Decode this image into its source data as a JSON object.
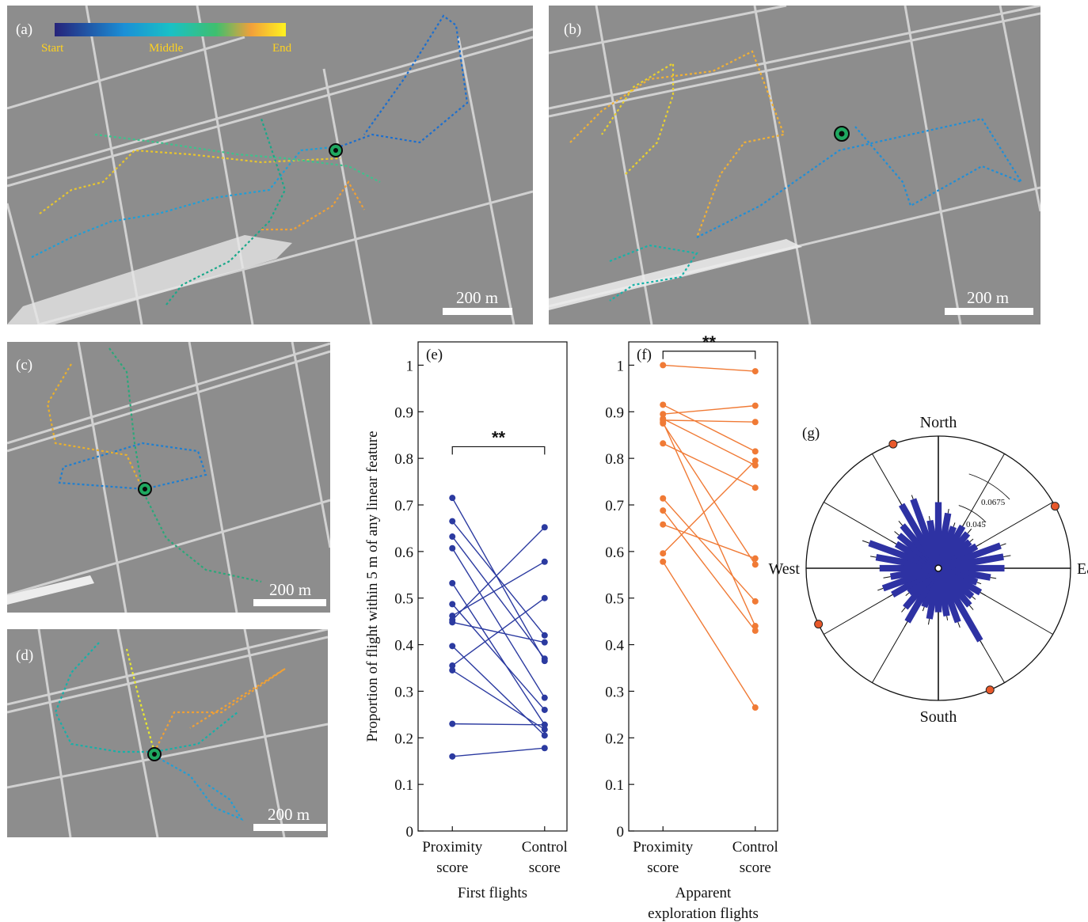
{
  "maps": [
    {
      "id": "a",
      "letter": "(a)",
      "scale_label": "200 m"
    },
    {
      "id": "b",
      "letter": "(b)",
      "scale_label": "200 m"
    },
    {
      "id": "c",
      "letter": "(c)",
      "scale_label": "200 m"
    },
    {
      "id": "d",
      "letter": "(d)",
      "scale_label": "200 m"
    }
  ],
  "colorbar": {
    "start": "Start",
    "middle": "Middle",
    "end": "End"
  },
  "colors": {
    "first_flights": "#2b3aa0",
    "exploration": "#f07a35",
    "rose_bars": "#2e32a3",
    "rose_marker": "#e8582a"
  },
  "chart_data": [
    {
      "type": "line",
      "panel": "(e)",
      "title": "",
      "xlabel": "First flights",
      "ylabel": "Proportion of flight within 5 m of any linear feature",
      "categories": [
        [
          "Proximity",
          "score"
        ],
        [
          "Control",
          "score"
        ]
      ],
      "ylim": [
        0,
        1.05
      ],
      "yticks": [
        0,
        0.1,
        0.2,
        0.3,
        0.4,
        0.5,
        0.6,
        0.7,
        0.8,
        0.9,
        1
      ],
      "significance": "**",
      "pairs": [
        [
          0.715,
          0.365
        ],
        [
          0.665,
          0.42
        ],
        [
          0.632,
          0.37
        ],
        [
          0.607,
          0.286
        ],
        [
          0.532,
          0.228
        ],
        [
          0.487,
          0.26
        ],
        [
          0.462,
          0.578
        ],
        [
          0.453,
          0.652
        ],
        [
          0.448,
          0.405
        ],
        [
          0.397,
          0.205
        ],
        [
          0.355,
          0.5
        ],
        [
          0.345,
          0.218
        ],
        [
          0.23,
          0.228
        ],
        [
          0.16,
          0.178
        ]
      ]
    },
    {
      "type": "line",
      "panel": "(f)",
      "title": "",
      "xlabel": [
        "Apparent",
        "exploration flights"
      ],
      "ylabel": "",
      "categories": [
        [
          "Proximity",
          "score"
        ],
        [
          "Control",
          "score"
        ]
      ],
      "ylim": [
        0,
        1.05
      ],
      "yticks": [
        0,
        0.1,
        0.2,
        0.3,
        0.4,
        0.5,
        0.6,
        0.7,
        0.8,
        0.9,
        1
      ],
      "significance": "**",
      "pairs": [
        [
          1.0,
          0.987
        ],
        [
          0.915,
          0.815
        ],
        [
          0.895,
          0.913
        ],
        [
          0.885,
          0.785
        ],
        [
          0.882,
          0.878
        ],
        [
          0.878,
          0.44
        ],
        [
          0.875,
          0.572
        ],
        [
          0.832,
          0.737
        ],
        [
          0.714,
          0.493
        ],
        [
          0.688,
          0.43
        ],
        [
          0.658,
          0.585
        ],
        [
          0.596,
          0.795
        ],
        [
          0.578,
          0.265
        ]
      ]
    },
    {
      "type": "polar-bar",
      "panel": "(g)",
      "title": "",
      "direction_labels": {
        "north": "North",
        "south": "South",
        "east": "East",
        "west": "West"
      },
      "ring_labels": [
        "0.045",
        "0.0675"
      ],
      "ring_values": [
        0.045,
        0.0675
      ],
      "rmax": 0.09,
      "bars": [
        {
          "angle_deg": 0,
          "value": 0.045,
          "err": 0.003
        },
        {
          "angle_deg": 10,
          "value": 0.038,
          "err": 0.003
        },
        {
          "angle_deg": 20,
          "value": 0.03,
          "err": 0.003
        },
        {
          "angle_deg": 30,
          "value": 0.033,
          "err": 0.004
        },
        {
          "angle_deg": 40,
          "value": 0.031,
          "err": 0.004
        },
        {
          "angle_deg": 50,
          "value": 0.028,
          "err": 0.003
        },
        {
          "angle_deg": 60,
          "value": 0.03,
          "err": 0.004
        },
        {
          "angle_deg": 70,
          "value": 0.045,
          "err": 0.004
        },
        {
          "angle_deg": 80,
          "value": 0.045,
          "err": 0.005
        },
        {
          "angle_deg": 90,
          "value": 0.045,
          "err": 0.004
        },
        {
          "angle_deg": 100,
          "value": 0.036,
          "err": 0.004
        },
        {
          "angle_deg": 110,
          "value": 0.028,
          "err": 0.003
        },
        {
          "angle_deg": 120,
          "value": 0.033,
          "err": 0.004
        },
        {
          "angle_deg": 130,
          "value": 0.03,
          "err": 0.003
        },
        {
          "angle_deg": 140,
          "value": 0.033,
          "err": 0.004
        },
        {
          "angle_deg": 150,
          "value": 0.057,
          "err": 0.004
        },
        {
          "angle_deg": 160,
          "value": 0.039,
          "err": 0.004
        },
        {
          "angle_deg": 170,
          "value": 0.033,
          "err": 0.003
        },
        {
          "angle_deg": 180,
          "value": 0.03,
          "err": 0.003
        },
        {
          "angle_deg": 190,
          "value": 0.035,
          "err": 0.004
        },
        {
          "angle_deg": 200,
          "value": 0.028,
          "err": 0.003
        },
        {
          "angle_deg": 210,
          "value": 0.042,
          "err": 0.004
        },
        {
          "angle_deg": 220,
          "value": 0.035,
          "err": 0.004
        },
        {
          "angle_deg": 230,
          "value": 0.026,
          "err": 0.003
        },
        {
          "angle_deg": 240,
          "value": 0.036,
          "err": 0.004
        },
        {
          "angle_deg": 250,
          "value": 0.04,
          "err": 0.004
        },
        {
          "angle_deg": 260,
          "value": 0.033,
          "err": 0.005
        },
        {
          "angle_deg": 270,
          "value": 0.04,
          "err": 0.005
        },
        {
          "angle_deg": 280,
          "value": 0.043,
          "err": 0.004
        },
        {
          "angle_deg": 290,
          "value": 0.05,
          "err": 0.005
        },
        {
          "angle_deg": 300,
          "value": 0.033,
          "err": 0.004
        },
        {
          "angle_deg": 310,
          "value": 0.035,
          "err": 0.004
        },
        {
          "angle_deg": 320,
          "value": 0.038,
          "err": 0.004
        },
        {
          "angle_deg": 330,
          "value": 0.05,
          "err": 0.004
        },
        {
          "angle_deg": 340,
          "value": 0.05,
          "err": 0.003
        },
        {
          "angle_deg": 350,
          "value": 0.033,
          "err": 0.003
        }
      ],
      "markers_deg": [
        340,
        62,
        157,
        245
      ]
    }
  ]
}
